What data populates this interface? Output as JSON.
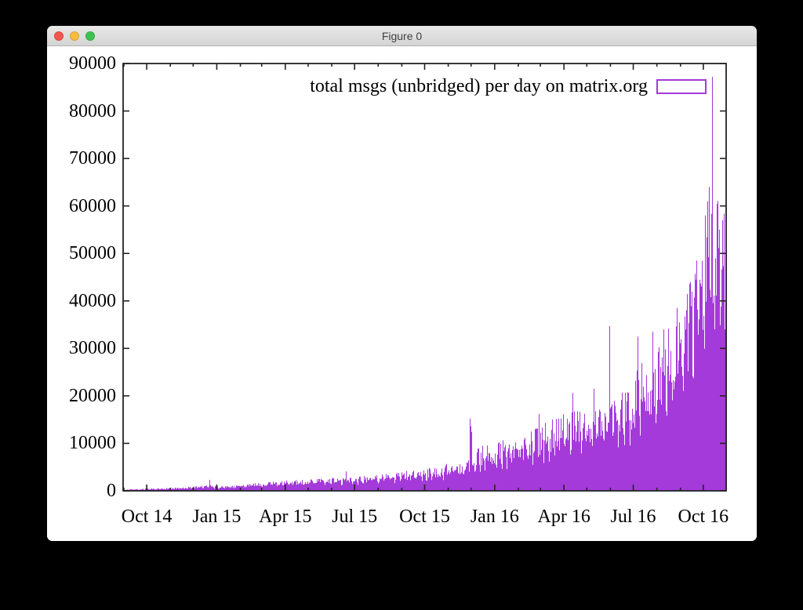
{
  "window": {
    "title": "Figure 0",
    "controls": [
      "close",
      "minimize",
      "zoom"
    ]
  },
  "colors": {
    "bar_purple": "#a43ada",
    "axis": "#232323",
    "text": "#000000",
    "titlebar_text": "#404040",
    "traffic_red": "#f3564f",
    "traffic_yellow": "#f6bd3e",
    "traffic_green": "#3ec24f"
  },
  "chart_data": {
    "type": "bar",
    "style": "daily impulses / vertical 1px bars",
    "title": "total msgs (unbridged) per day on matrix.org",
    "xlabel": "",
    "ylabel": "",
    "ylim": [
      0,
      90000
    ],
    "grid": false,
    "legend_position": "top-right inside plot",
    "bar_color": "#a43ada",
    "y_ticks": [
      0,
      10000,
      20000,
      30000,
      40000,
      50000,
      60000,
      70000,
      80000,
      90000
    ],
    "x_range": [
      "2014-08-31",
      "2016-10-31"
    ],
    "x_ticks": [
      {
        "label": "Oct 14",
        "date": "2014-10-01"
      },
      {
        "label": "Jan 15",
        "date": "2015-01-01"
      },
      {
        "label": "Apr 15",
        "date": "2015-04-01"
      },
      {
        "label": "Jul 15",
        "date": "2015-07-01"
      },
      {
        "label": "Oct 15",
        "date": "2015-10-01"
      },
      {
        "label": "Jan 16",
        "date": "2016-01-01"
      },
      {
        "label": "Apr 16",
        "date": "2016-04-01"
      },
      {
        "label": "Jul 16",
        "date": "2016-07-01"
      },
      {
        "label": "Oct 16",
        "date": "2016-10-01"
      }
    ],
    "x_minor_ticks": "monthly, mirrored on top and bottom borders",
    "series_synthesis": {
      "note": "daily values estimated from pixel heights of the plot; envelope anchors are typical daily message counts, spikes are notable outlier days read off the chart",
      "anchors": [
        [
          "2014-08-31",
          200
        ],
        [
          "2014-10-01",
          380
        ],
        [
          "2014-11-15",
          550
        ],
        [
          "2014-12-20",
          950
        ],
        [
          "2015-01-10",
          750
        ],
        [
          "2015-02-15",
          1150
        ],
        [
          "2015-03-20",
          1600
        ],
        [
          "2015-05-01",
          1800
        ],
        [
          "2015-06-15",
          2200
        ],
        [
          "2015-08-01",
          2600
        ],
        [
          "2015-09-15",
          3300
        ],
        [
          "2015-10-20",
          4000
        ],
        [
          "2015-11-25",
          5200
        ],
        [
          "2015-12-10",
          7200
        ],
        [
          "2016-01-20",
          8500
        ],
        [
          "2016-03-01",
          10500
        ],
        [
          "2016-04-10",
          13000
        ],
        [
          "2016-05-20",
          14500
        ],
        [
          "2016-06-20",
          16500
        ],
        [
          "2016-07-15",
          21000
        ],
        [
          "2016-08-15",
          26000
        ],
        [
          "2016-09-10",
          32000
        ],
        [
          "2016-09-25",
          38000
        ],
        [
          "2016-10-05",
          44000
        ],
        [
          "2016-10-20",
          48500
        ],
        [
          "2016-10-31",
          51000
        ]
      ],
      "spikes": [
        [
          "2014-12-22",
          2300
        ],
        [
          "2015-06-20",
          4100
        ],
        [
          "2015-11-29",
          15200
        ],
        [
          "2015-11-30",
          13600
        ],
        [
          "2015-12-01",
          12400
        ],
        [
          "2016-02-28",
          16200
        ],
        [
          "2016-04-12",
          20600
        ],
        [
          "2016-05-10",
          21500
        ],
        [
          "2016-05-31",
          34700
        ],
        [
          "2016-07-07",
          32500
        ],
        [
          "2016-07-26",
          33500
        ],
        [
          "2016-08-10",
          34000
        ],
        [
          "2016-08-27",
          38500
        ],
        [
          "2016-09-14",
          44000
        ],
        [
          "2016-09-22",
          48500
        ],
        [
          "2016-10-03",
          58000
        ],
        [
          "2016-10-06",
          61000
        ],
        [
          "2016-10-08",
          64000
        ],
        [
          "2016-10-12",
          87200
        ],
        [
          "2016-10-14",
          39500
        ],
        [
          "2016-10-22",
          55000
        ],
        [
          "2016-10-26",
          57000
        ],
        [
          "2016-10-31",
          50500
        ]
      ],
      "weekend_factor": 0.75,
      "noise_range": [
        0.72,
        1.32
      ],
      "max_value": 87200
    }
  }
}
